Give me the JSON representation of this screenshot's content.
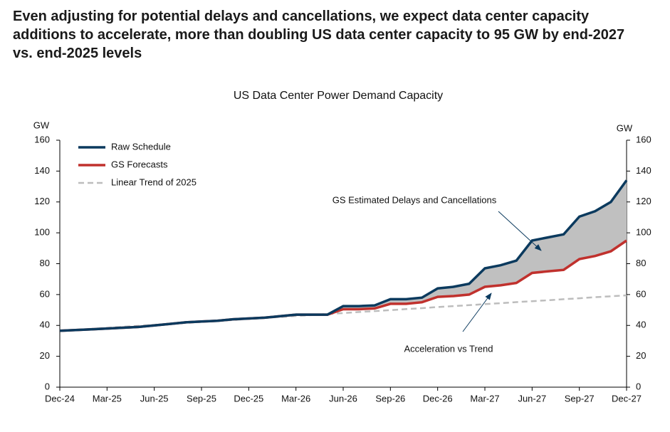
{
  "chart_data": {
    "type": "line",
    "headline": [
      "Even adjusting for potential delays and cancellations, we expect data center capacity",
      "additions to accelerate, more than doubling US data center capacity to 95 GW by end-2027",
      "vs. end-2025 levels"
    ],
    "title": "US Data Center Power Demand Capacity",
    "y_label": "GW",
    "categories": [
      "Dec-24",
      null,
      null,
      "Mar-25",
      null,
      null,
      "Jun-25",
      null,
      null,
      "Sep-25",
      null,
      null,
      "Dec-25",
      null,
      null,
      "Mar-26",
      null,
      null,
      "Jun-26",
      null,
      null,
      "Sep-26",
      null,
      null,
      "Dec-26",
      null,
      null,
      "Mar-27",
      null,
      null,
      "Jun-27",
      null,
      null,
      "Sep-27",
      null,
      null,
      "Dec-27"
    ],
    "series": [
      {
        "name": "Raw Schedule",
        "color": "#0b3a5e",
        "values": [
          36.5,
          37,
          37.5,
          38,
          38.5,
          39,
          40,
          41,
          42,
          42.5,
          43,
          44,
          44.5,
          45,
          46,
          47,
          47,
          47,
          52.5,
          52.5,
          53,
          57,
          57,
          58,
          64,
          65,
          67,
          77,
          79,
          82,
          95,
          97,
          99,
          110.5,
          114,
          120,
          134
        ]
      },
      {
        "name": "GS Forecasts",
        "color": "#c0312d",
        "values": [
          36.5,
          37,
          37.5,
          38,
          38.5,
          39,
          40,
          41,
          42,
          42.5,
          43,
          44,
          44.5,
          45,
          46,
          47,
          47,
          47,
          50.5,
          50.5,
          51,
          54,
          54,
          55,
          58.5,
          59,
          60,
          65,
          66,
          67.5,
          74,
          75,
          76,
          83,
          85,
          88,
          95
        ]
      },
      {
        "name": "Linear Trend of 2025",
        "color": "#bdbdbd",
        "dashed": true,
        "values": [
          36.5,
          37.1,
          37.8,
          38.4,
          39.1,
          39.7,
          40.3,
          41.0,
          41.6,
          42.3,
          42.9,
          43.5,
          44.2,
          44.8,
          45.5,
          46.1,
          46.7,
          47.4,
          48.0,
          48.7,
          49.3,
          49.9,
          50.6,
          51.2,
          51.9,
          52.5,
          53.1,
          53.8,
          54.4,
          55.1,
          55.7,
          56.3,
          57.0,
          57.6,
          58.3,
          58.9,
          59.5
        ]
      }
    ],
    "band_color": "#c0c0c0",
    "annotations": [
      "GS Estimated Delays and Cancellations",
      "Acceleration vs Trend"
    ],
    "ylim": [
      0,
      160
    ],
    "yticks": [
      0,
      20,
      40,
      60,
      80,
      100,
      120,
      140,
      160
    ],
    "legend": "upper left",
    "grid": false
  }
}
